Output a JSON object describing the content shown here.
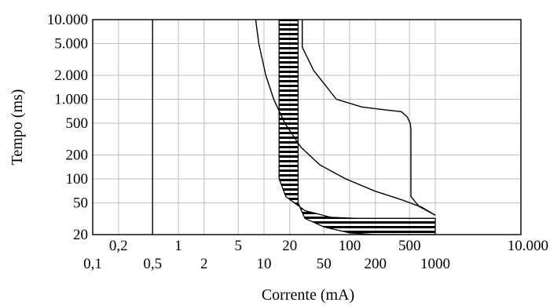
{
  "chart_data": {
    "type": "line",
    "title": "",
    "xlabel": "Corrente (mA)",
    "ylabel": "Tempo (ms)",
    "x_scale": "log",
    "y_scale": "log",
    "xlim": [
      0.1,
      10000
    ],
    "ylim": [
      20,
      10000
    ],
    "grid": true,
    "x_ticks_top": [
      "0,2",
      "1",
      "5",
      "20",
      "100",
      "500"
    ],
    "x_ticks_top_values": [
      0.2,
      1,
      5,
      20,
      100,
      500
    ],
    "x_ticks_bottom": [
      "0,1",
      "0,5",
      "2",
      "10",
      "50",
      "200",
      "1000"
    ],
    "x_ticks_bottom_values": [
      0.1,
      0.5,
      2,
      10,
      50,
      200,
      1000
    ],
    "x_tick_right": "10.000",
    "x_tick_right_value": 10000,
    "y_ticks": [
      "10.000",
      "5.000",
      "2.000",
      "1.000",
      "500",
      "200",
      "100",
      "50",
      "20"
    ],
    "y_tick_values": [
      10000,
      5000,
      2000,
      1000,
      500,
      200,
      100,
      50,
      20
    ],
    "series": [
      {
        "kind": "line",
        "points": [
          [
            0.5,
            20
          ],
          [
            0.5,
            10000
          ]
        ]
      },
      {
        "kind": "line",
        "points": [
          [
            8,
            10000
          ],
          [
            8.7,
            5000
          ],
          [
            10.5,
            2000
          ],
          [
            13,
            1000
          ],
          [
            17.5,
            500
          ],
          [
            27,
            250
          ],
          [
            45,
            150
          ],
          [
            90,
            100
          ],
          [
            200,
            70
          ],
          [
            400,
            55
          ],
          [
            700,
            44
          ],
          [
            1000,
            35
          ]
        ]
      },
      {
        "kind": "line",
        "points": [
          [
            28,
            10000
          ],
          [
            28,
            4500
          ],
          [
            38,
            2300
          ],
          [
            70,
            1000
          ],
          [
            140,
            800
          ],
          [
            280,
            730
          ],
          [
            400,
            700
          ],
          [
            470,
            600
          ],
          [
            510,
            500
          ],
          [
            520,
            420
          ],
          [
            520,
            60
          ],
          [
            650,
            45
          ],
          [
            1000,
            35
          ]
        ]
      },
      {
        "kind": "band",
        "points": [
          [
            15,
            10000
          ],
          [
            15,
            100
          ],
          [
            18,
            60
          ],
          [
            30,
            40
          ],
          [
            60,
            33
          ],
          [
            120,
            32
          ],
          [
            300,
            32
          ],
          [
            1000,
            32
          ],
          [
            1000,
            20
          ],
          [
            500,
            20
          ],
          [
            200,
            20
          ],
          [
            100,
            21
          ],
          [
            50,
            25
          ],
          [
            30,
            32
          ],
          [
            25,
            50
          ],
          [
            25,
            10000
          ]
        ]
      }
    ]
  }
}
